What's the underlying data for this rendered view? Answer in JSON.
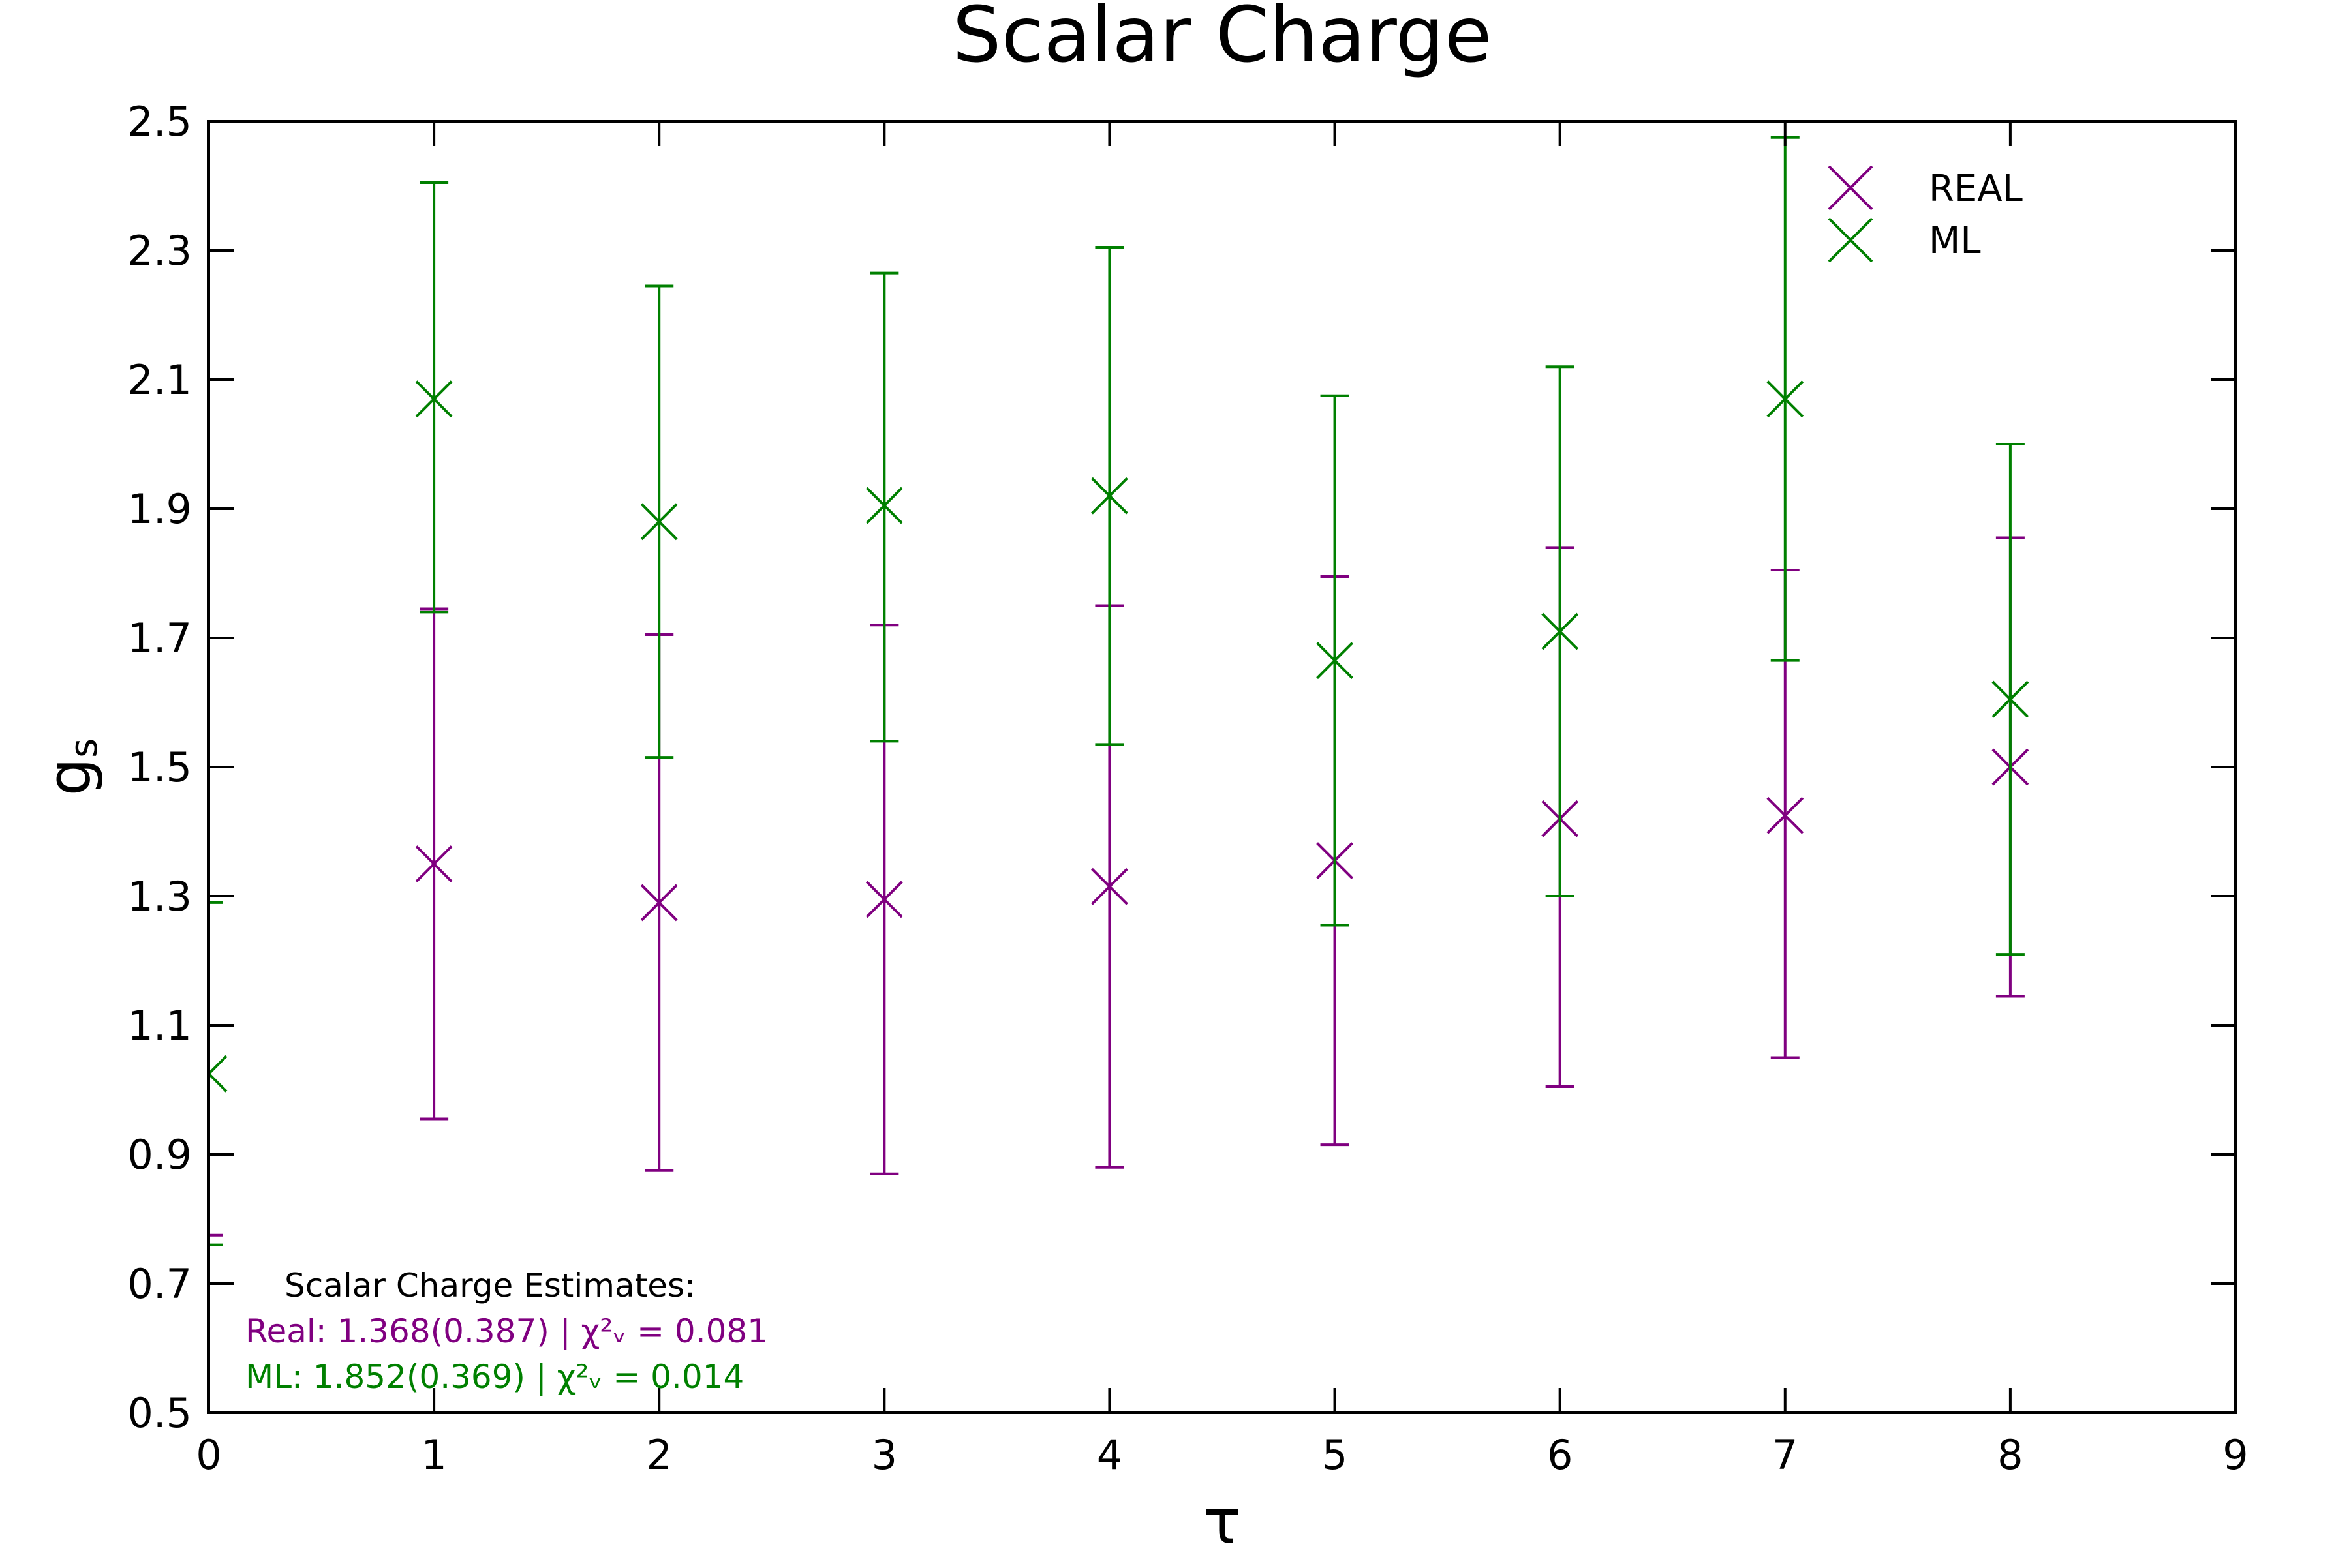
{
  "chart_data": {
    "type": "scatter",
    "title": "Scalar Charge",
    "xlabel": "τ",
    "ylabel": "gs",
    "ylabel_main": "g",
    "ylabel_sub": "s",
    "xlim": [
      0,
      9
    ],
    "ylim": [
      0.5,
      2.5
    ],
    "xticks": [
      0,
      1,
      2,
      3,
      4,
      5,
      6,
      7,
      8,
      9
    ],
    "xtick_labels": [
      "0",
      "1",
      "2",
      "3",
      "4",
      "5",
      "6",
      "7",
      "8",
      "9"
    ],
    "yticks": [
      0.5,
      0.7,
      0.9,
      1.1,
      1.3,
      1.5,
      1.7,
      1.9,
      2.1,
      2.3,
      2.5
    ],
    "ytick_labels": [
      "0.5",
      "0.7",
      "0.9",
      "1.1",
      "1.3",
      "1.5",
      "1.7",
      "1.9",
      "2.1",
      "2.3",
      "2.5"
    ],
    "grid": false,
    "legend_position": "top-right",
    "marker": "x",
    "series": [
      {
        "name": "REAL",
        "color": "#800080",
        "points": [
          {
            "x": 0,
            "y": 0.45,
            "lo": 0.43,
            "hi": 0.775
          },
          {
            "x": 1,
            "y": 1.35,
            "lo": 0.955,
            "hi": 1.745
          },
          {
            "x": 2,
            "y": 1.29,
            "lo": 0.875,
            "hi": 1.705
          },
          {
            "x": 3,
            "y": 1.295,
            "lo": 0.87,
            "hi": 1.72
          },
          {
            "x": 4,
            "y": 1.315,
            "lo": 0.88,
            "hi": 1.75
          },
          {
            "x": 5,
            "y": 1.355,
            "lo": 0.915,
            "hi": 1.795
          },
          {
            "x": 6,
            "y": 1.42,
            "lo": 1.005,
            "hi": 1.84
          },
          {
            "x": 7,
            "y": 1.425,
            "lo": 1.05,
            "hi": 1.805
          },
          {
            "x": 8,
            "y": 1.5,
            "lo": 1.145,
            "hi": 1.855
          }
        ]
      },
      {
        "name": "ML",
        "color": "#008000",
        "points": [
          {
            "x": 0,
            "y": 1.025,
            "lo": 0.76,
            "hi": 1.29
          },
          {
            "x": 1,
            "y": 2.07,
            "lo": 1.74,
            "hi": 2.405
          },
          {
            "x": 2,
            "y": 1.88,
            "lo": 1.515,
            "hi": 2.245
          },
          {
            "x": 3,
            "y": 1.905,
            "lo": 1.54,
            "hi": 2.265
          },
          {
            "x": 4,
            "y": 1.92,
            "lo": 1.535,
            "hi": 2.305
          },
          {
            "x": 5,
            "y": 1.665,
            "lo": 1.255,
            "hi": 2.075
          },
          {
            "x": 6,
            "y": 1.71,
            "lo": 1.3,
            "hi": 2.12
          },
          {
            "x": 7,
            "y": 2.07,
            "lo": 1.665,
            "hi": 2.475
          },
          {
            "x": 8,
            "y": 1.605,
            "lo": 1.21,
            "hi": 2.0
          }
        ]
      }
    ],
    "annotation": {
      "heading": "Scalar Charge Estimates:",
      "lines": [
        {
          "series": "REAL",
          "text": "Real: 1.368(0.387) | χ²ᵥ = 0.081",
          "color": "#800080"
        },
        {
          "series": "ML",
          "text": "ML: 1.852(0.369) | χ²ᵥ = 0.014",
          "color": "#008000"
        }
      ]
    }
  }
}
